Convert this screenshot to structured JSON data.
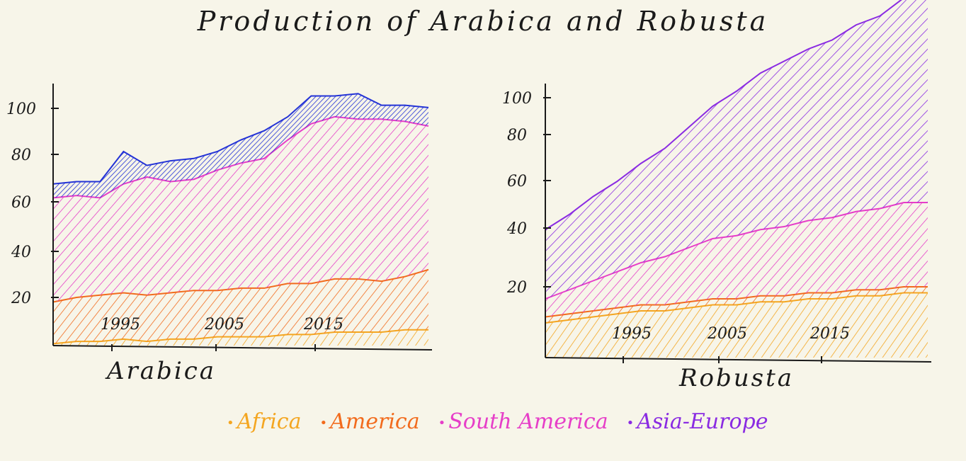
{
  "title": "Production of Arabica and Robusta",
  "colors": {
    "Africa": "#f4a621",
    "America": "#f26b1d",
    "South America": "#e63ec8",
    "Asia-Europe": "#8a2be2",
    "arabica_top": "#2433d6",
    "ink": "#1a1a1a"
  },
  "legend": [
    {
      "label": "Africa",
      "color": "#f4a621"
    },
    {
      "label": "America",
      "color": "#f26b1d"
    },
    {
      "label": "South America",
      "color": "#e63ec8"
    },
    {
      "label": "Asia-Europe",
      "color": "#8a2be2"
    }
  ],
  "chart_data": [
    {
      "type": "area",
      "title": "",
      "xlabel": "Arabica",
      "ylabel": "",
      "stacked": true,
      "x": [
        1990,
        1992,
        1994,
        1996,
        1998,
        2000,
        2002,
        2004,
        2006,
        2008,
        2010,
        2012,
        2014,
        2016,
        2018,
        2020,
        2022
      ],
      "x_ticks": [
        "1995",
        "2005",
        "2015"
      ],
      "y_ticks": [
        "20",
        "40",
        "60",
        "80",
        "100"
      ],
      "ylim": [
        -10,
        110
      ],
      "series": [
        {
          "name": "Africa",
          "values": [
            0,
            1,
            1,
            2,
            1,
            2,
            2,
            3,
            3,
            3,
            4,
            4,
            5,
            5,
            5,
            6,
            6
          ]
        },
        {
          "name": "America",
          "values": [
            18,
            19,
            20,
            20,
            20,
            20,
            21,
            20,
            21,
            21,
            22,
            22,
            23,
            23,
            22,
            23,
            26
          ]
        },
        {
          "name": "South America",
          "values": [
            45,
            44,
            42,
            47,
            51,
            48,
            48,
            52,
            54,
            56,
            62,
            69,
            70,
            69,
            70,
            67,
            62
          ]
        },
        {
          "name": "",
          "values": [
            6,
            6,
            7,
            14,
            5,
            9,
            9,
            8,
            10,
            12,
            10,
            12,
            9,
            11,
            6,
            7,
            8
          ]
        }
      ]
    },
    {
      "type": "area",
      "title": "",
      "xlabel": "Robusta",
      "ylabel": "",
      "stacked": true,
      "x": [
        1990,
        1992,
        1994,
        1996,
        1998,
        2000,
        2002,
        2004,
        2006,
        2008,
        2010,
        2012,
        2014,
        2016,
        2018,
        2020,
        2022
      ],
      "x_ticks": [
        "1995",
        "2005",
        "2015"
      ],
      "y_ticks": [
        "20",
        "40",
        "60",
        "80",
        "100"
      ],
      "ylim": [
        0,
        115
      ],
      "series": [
        {
          "name": "Africa",
          "values": [
            8,
            9,
            10,
            11,
            12,
            12,
            13,
            14,
            14,
            15,
            15,
            16,
            16,
            17,
            17,
            18,
            18
          ]
        },
        {
          "name": "America",
          "values": [
            2,
            2,
            2,
            2,
            2,
            2,
            2,
            2,
            2,
            2,
            2,
            2,
            2,
            2,
            2,
            2,
            2
          ]
        },
        {
          "name": "South America",
          "values": [
            6,
            8,
            10,
            12,
            14,
            16,
            18,
            20,
            21,
            22,
            23,
            24,
            25,
            26,
            27,
            28,
            28
          ]
        },
        {
          "name": "Asia-Europe",
          "values": [
            23,
            25,
            28,
            30,
            33,
            36,
            40,
            44,
            48,
            52,
            55,
            57,
            59,
            62,
            64,
            68,
            73
          ]
        }
      ]
    }
  ]
}
